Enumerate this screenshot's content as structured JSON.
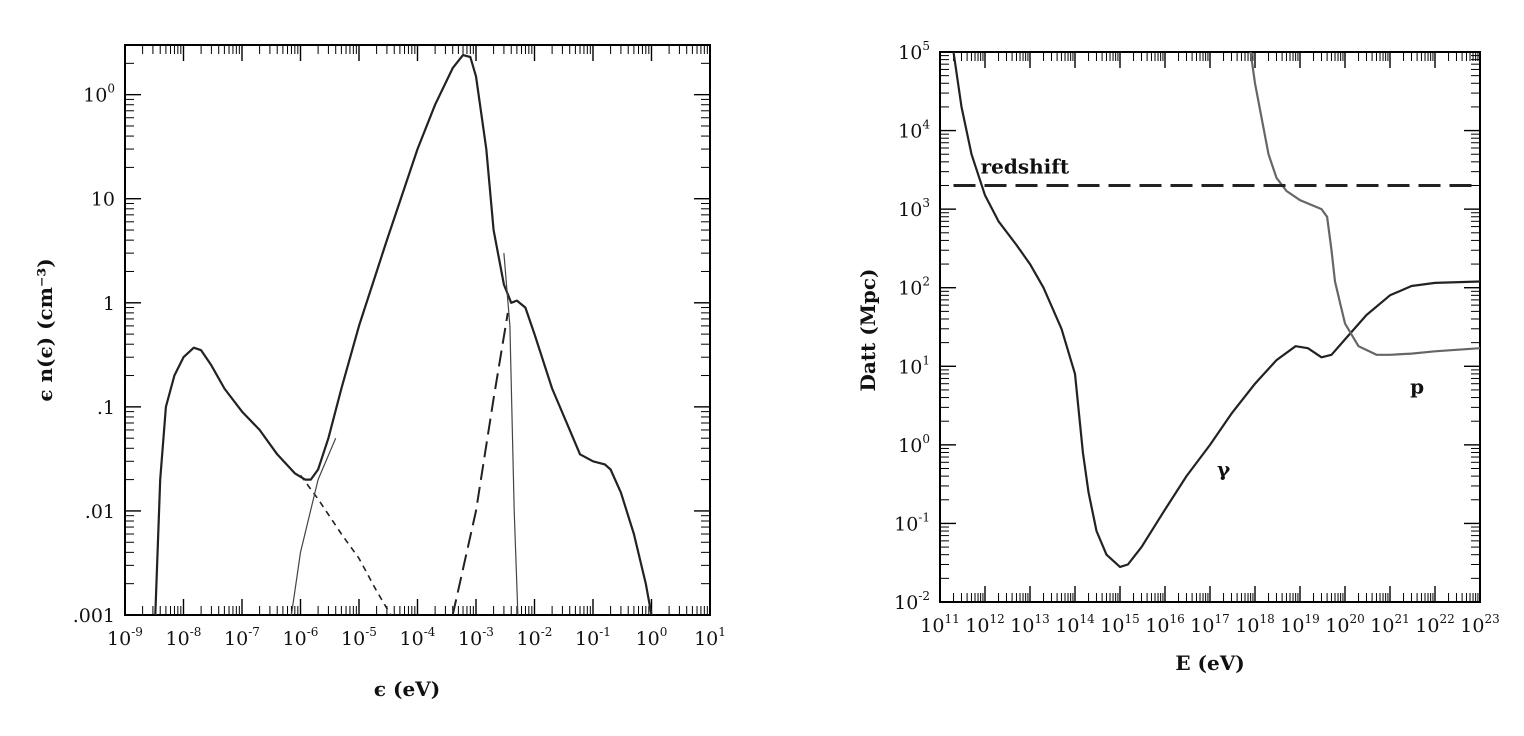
{
  "chart_data": [
    {
      "type": "line",
      "xscale": "log",
      "yscale": "log",
      "xlim": [
        1e-09,
        10
      ],
      "ylim": [
        0.001,
        300
      ],
      "xlabel": "ϵ (eV)",
      "ylabel": "ϵ n(ϵ) (cm⁻³)",
      "x_tick_labels": [
        "10-9",
        "10-8",
        "10-7",
        "10-6",
        "10-5",
        "10-4",
        "10-3",
        "10-2",
        "10-1",
        "100",
        "101"
      ],
      "y_tick_labels": [
        ".001",
        ".01",
        ".1",
        "1",
        "10",
        "100"
      ],
      "series": [
        {
          "style": "solid",
          "x": [
            3.3e-09,
            4e-09,
            5e-09,
            7e-09,
            1e-08,
            1.5e-08,
            2e-08,
            3e-08,
            5e-08,
            1e-07,
            2e-07,
            4e-07,
            8e-07,
            1.2e-06,
            1.5e-06,
            2e-06,
            3e-06,
            5e-06,
            1e-05,
            3e-05,
            0.0001,
            0.0002,
            0.0004,
            0.0006,
            0.0008,
            0.001,
            0.0015,
            0.002,
            0.003,
            0.004,
            0.005,
            0.007,
            0.01,
            0.02,
            0.04,
            0.06,
            0.1,
            0.16,
            0.2,
            0.3,
            0.5,
            0.8,
            1.0
          ],
          "y": [
            0.001,
            0.02,
            0.1,
            0.2,
            0.3,
            0.37,
            0.35,
            0.25,
            0.15,
            0.09,
            0.06,
            0.035,
            0.023,
            0.02,
            0.02,
            0.025,
            0.05,
            0.15,
            0.6,
            4,
            30,
            80,
            180,
            240,
            230,
            150,
            30,
            5,
            1.5,
            1.0,
            1.05,
            0.9,
            0.5,
            0.15,
            0.06,
            0.035,
            0.03,
            0.028,
            0.025,
            0.015,
            0.006,
            0.002,
            0.001
          ]
        },
        {
          "style": "short-dash",
          "x": [
            1e-06,
            2e-06,
            5e-06,
            1e-05,
            2e-05,
            3.5e-05
          ],
          "y": [
            0.022,
            0.013,
            0.006,
            0.0035,
            0.0017,
            0.001
          ]
        },
        {
          "style": "dotted",
          "x": [
            7e-07,
            1e-06,
            2e-06,
            4e-06
          ],
          "y": [
            0.001,
            0.004,
            0.02,
            0.05
          ]
        },
        {
          "style": "long-dash",
          "x": [
            0.0004,
            0.001,
            0.002,
            0.0035
          ],
          "y": [
            0.001,
            0.01,
            0.12,
            0.8
          ]
        },
        {
          "style": "dotted",
          "x": [
            0.003,
            0.0038,
            0.0045,
            0.0052
          ],
          "y": [
            3,
            0.6,
            0.01,
            0.001
          ]
        }
      ]
    },
    {
      "type": "line",
      "xscale": "log",
      "yscale": "log",
      "xlim": [
        100000000000.0,
        1e+23
      ],
      "ylim": [
        0.01,
        100000
      ],
      "xlabel": "E (eV)",
      "ylabel": "Datt (Mpc)",
      "x_tick_labels": [
        "1011",
        "1012",
        "1013",
        "1014",
        "1015",
        "1016",
        "1017",
        "1018",
        "1019",
        "1020",
        "1021",
        "1022",
        "1023"
      ],
      "y_tick_labels": [
        "10-2",
        "10-1",
        "100",
        "101",
        "102",
        "103",
        "104",
        "105"
      ],
      "annotations": [
        "redshift",
        "γ",
        "p"
      ],
      "series": [
        {
          "name": "γ",
          "x": [
            200000000000.0,
            300000000000.0,
            500000000000.0,
            1000000000000.0,
            2000000000000.0,
            5000000000000.0,
            10000000000000.0,
            20000000000000.0,
            50000000000000.0,
            100000000000000.0,
            150000000000000.0,
            200000000000000.0,
            300000000000000.0,
            500000000000000.0,
            1000000000000000.0,
            1500000000000000.0,
            3000000000000000.0,
            1e+16,
            3e+16,
            1e+17,
            3e+17,
            1e+18,
            3e+18,
            8e+18,
            1.5e+19,
            3e+19,
            5e+19,
            1e+20,
            3e+20,
            1e+21,
            3e+21,
            1e+22,
            1e+23
          ],
          "y": [
            100000,
            20000,
            5000,
            1500,
            700,
            350,
            200,
            100,
            30,
            8,
            0.8,
            0.25,
            0.08,
            0.04,
            0.028,
            0.03,
            0.05,
            0.15,
            0.4,
            1,
            2.5,
            6,
            12,
            18,
            17,
            13,
            14,
            22,
            45,
            80,
            105,
            115,
            120
          ]
        },
        {
          "name": "p",
          "x": [
            8e+17,
            1e+18,
            2e+18,
            3e+18,
            5e+18,
            1e+19,
            3e+19,
            4e+19,
            5e+19,
            6e+19,
            8e+19,
            1e+20,
            2e+20,
            5e+20,
            1e+21,
            3e+21,
            1e+22,
            1e+23
          ],
          "y": [
            100000,
            40000,
            5000,
            2500,
            1700,
            1300,
            1000,
            800,
            300,
            120,
            60,
            35,
            18,
            14,
            14,
            14.5,
            15.5,
            17
          ]
        },
        {
          "name": "redshift",
          "x": [
            200000000000.0,
            1e+23
          ],
          "y": [
            2000,
            2000
          ]
        }
      ]
    }
  ]
}
